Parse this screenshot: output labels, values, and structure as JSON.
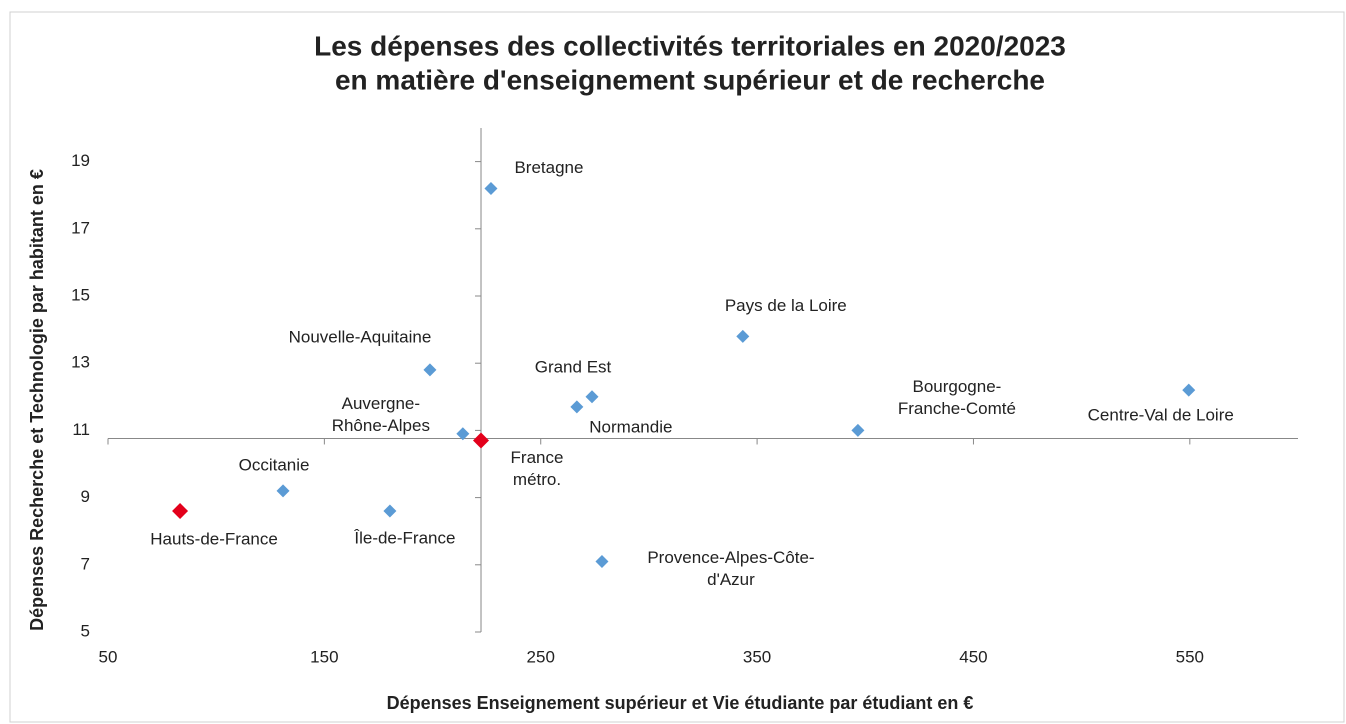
{
  "chart_data": {
    "type": "scatter",
    "title": [
      "Les dépenses des collectivités territoriales en 2020/2023",
      "en matière d'enseignement supérieur et de recherche"
    ],
    "x_label": "Dépenses Enseignement supérieur et Vie étudiante par étudiant en €",
    "y_label": "Dépenses Recherche et Technologie par habitant en €",
    "labels": [
      [
        "Bretagne"
      ],
      [
        "Pays de la Loire"
      ],
      [
        "Nouvelle-Aquitaine"
      ],
      [
        "Grand Est"
      ],
      [
        "Normandie"
      ],
      [
        "Auvergne-",
        "Rhône-Alpes"
      ],
      [
        "France",
        "métro."
      ],
      [
        "Bourgogne-",
        "Franche-Comté"
      ],
      [
        "Centre-Val de Loire"
      ],
      [
        "Occitanie"
      ],
      [
        "Hauts-de-France"
      ],
      [
        "Île-de-France"
      ],
      [
        "Provence-Alpes-Côte-",
        "d'Azur"
      ]
    ],
    "x": [
      227,
      343.4,
      198.8,
      273.7,
      266.7,
      214,
      222.4,
      396.6,
      549.5,
      130.9,
      83.3,
      180.3,
      278.3
    ],
    "values": [
      18.2,
      13.8,
      12.8,
      12.0,
      11.7,
      10.9,
      10.7,
      11.0,
      12.2,
      9.2,
      8.6,
      8.6,
      7.1
    ],
    "colors": [
      "#5b9bd5",
      "#5b9bd5",
      "#5b9bd5",
      "#5b9bd5",
      "#5b9bd5",
      "#5b9bd5",
      "#e3001b",
      "#5b9bd5",
      "#5b9bd5",
      "#5b9bd5",
      "#e3001b",
      "#5b9bd5",
      "#5b9bd5"
    ],
    "xlim": [
      50,
      600
    ],
    "ylim": [
      5,
      20
    ],
    "xticks": [
      50,
      150,
      250,
      350,
      450,
      550
    ],
    "yticks": [
      5,
      7,
      9,
      11,
      13,
      15,
      17,
      19
    ],
    "axis_cross": [
      222.4,
      10.76
    ]
  }
}
